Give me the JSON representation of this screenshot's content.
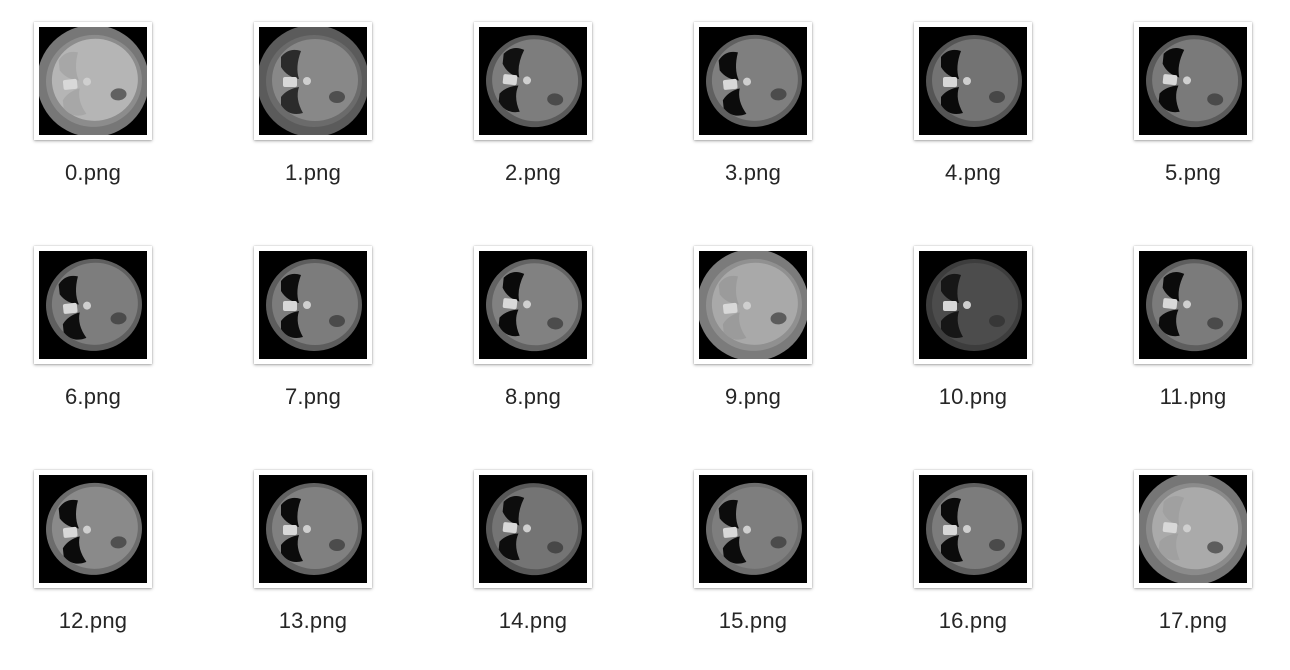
{
  "files": [
    {
      "name": "0.png"
    },
    {
      "name": "1.png"
    },
    {
      "name": "2.png"
    },
    {
      "name": "3.png"
    },
    {
      "name": "4.png"
    },
    {
      "name": "5.png"
    },
    {
      "name": "6.png"
    },
    {
      "name": "7.png"
    },
    {
      "name": "8.png"
    },
    {
      "name": "9.png"
    },
    {
      "name": "10.png"
    },
    {
      "name": "11.png"
    },
    {
      "name": "12.png"
    },
    {
      "name": "13.png"
    },
    {
      "name": "14.png"
    },
    {
      "name": "15.png"
    },
    {
      "name": "16.png"
    },
    {
      "name": "17.png"
    }
  ],
  "colors": {
    "background": "#ffffff",
    "label": "#262626",
    "image_bg": "#000000"
  }
}
